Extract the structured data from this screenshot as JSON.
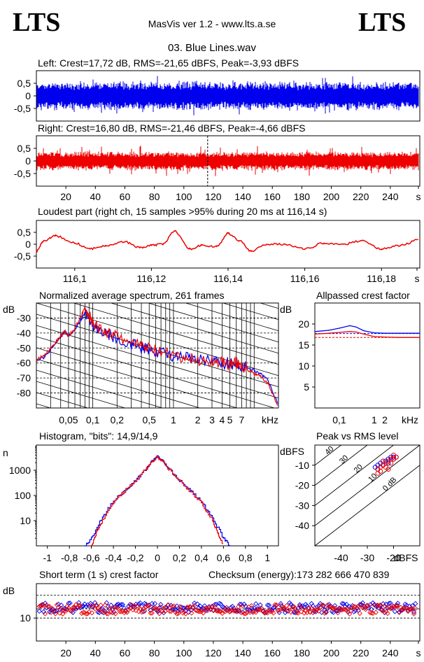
{
  "header": {
    "logo_left": "LTS",
    "logo_right": "LTS",
    "app_title": "MasVis ver 1.2 - www.lts.a.se",
    "file_title": "03. Blue Lines.wav"
  },
  "colors": {
    "blue": "#0000ee",
    "red": "#ee0000",
    "black": "#000000"
  },
  "chart_data": [
    {
      "id": "left",
      "type": "area",
      "title": "Left: Crest=17,72 dB, RMS=-21,65 dBFS, Peak=-3,93 dBFS",
      "y_ticks": [
        "0,5",
        "0",
        "-0,5"
      ],
      "ylim": [
        -1,
        1
      ],
      "color": "blue",
      "envelope_approx": 0.6
    },
    {
      "id": "right",
      "type": "area",
      "title": "Right: Crest=16,80 dB, RMS=-21,46 dBFS, Peak=-4,66 dBFS",
      "y_ticks": [
        "0,5",
        "0",
        "-0,5"
      ],
      "x_ticks": [
        "20",
        "40",
        "60",
        "80",
        "100",
        "120",
        "140",
        "160",
        "180",
        "200",
        "220",
        "240",
        "s"
      ],
      "xlim": [
        0,
        260
      ],
      "ylim": [
        -1,
        1
      ],
      "color": "red",
      "marker_x": 116.14,
      "envelope_approx": 0.4
    },
    {
      "id": "loudest",
      "type": "line",
      "title": "Loudest part (right ch, 15 samples >95% during 20 ms at 116,14 s)",
      "y_ticks": [
        "0,5",
        "0",
        "-0,5"
      ],
      "x_ticks": [
        "116,1",
        "116,12",
        "116,14",
        "116,16",
        "116,18",
        "s"
      ],
      "xlim": [
        116.09,
        116.19
      ],
      "ylim": [
        -1,
        1
      ],
      "color": "red",
      "x": [
        116.09,
        116.092,
        116.095,
        116.1,
        116.104,
        116.108,
        116.113,
        116.117,
        116.12,
        116.123,
        116.126,
        116.13,
        116.133,
        116.137,
        116.14,
        116.143,
        116.146,
        116.15,
        116.155,
        116.16,
        116.165,
        116.17,
        116.175,
        116.18,
        116.185,
        116.19
      ],
      "y": [
        -0.3,
        0.15,
        0.35,
        0.05,
        -0.2,
        -0.05,
        0.1,
        -0.15,
        -0.05,
        0.0,
        0.55,
        -0.2,
        -0.05,
        -0.1,
        0.45,
        0.15,
        -0.3,
        0.0,
        0.0,
        -0.2,
        0.05,
        0.0,
        0.15,
        -0.2,
        -0.05,
        0.2
      ]
    },
    {
      "id": "spectrum",
      "type": "line",
      "title": "Normalized average spectrum, 261 frames",
      "ylabel": "dB",
      "y_ticks": [
        "-30",
        "-40",
        "-50",
        "-60",
        "-70",
        "-80"
      ],
      "x_ticks": [
        "0,05",
        "0,1",
        "0,2",
        "0,5",
        "1",
        "2",
        "3",
        "4",
        "5",
        "7",
        "kHz"
      ],
      "x_log": true,
      "xlim": [
        0.02,
        20
      ],
      "ylim": [
        -90,
        -20
      ],
      "series": [
        {
          "color": "blue",
          "x": [
            0.02,
            0.025,
            0.03,
            0.035,
            0.04,
            0.045,
            0.05,
            0.06,
            0.07,
            0.08,
            0.09,
            0.1,
            0.12,
            0.15,
            0.2,
            0.3,
            0.4,
            0.5,
            0.7,
            1,
            1.5,
            2,
            3,
            4,
            5,
            6,
            7,
            8,
            10,
            12,
            15,
            20
          ],
          "y": [
            -59,
            -56,
            -51,
            -46,
            -42,
            -39,
            -42,
            -38,
            -32,
            -26,
            -30,
            -35,
            -38,
            -40,
            -44,
            -47,
            -50,
            -51,
            -53,
            -55,
            -57,
            -58,
            -59,
            -60,
            -60,
            -61,
            -62,
            -63,
            -65,
            -67,
            -72,
            -88
          ]
        },
        {
          "color": "red",
          "x": [
            0.02,
            0.025,
            0.03,
            0.035,
            0.04,
            0.045,
            0.05,
            0.06,
            0.07,
            0.08,
            0.09,
            0.1,
            0.12,
            0.15,
            0.2,
            0.3,
            0.4,
            0.5,
            0.7,
            1,
            1.5,
            2,
            3,
            4,
            5,
            6,
            7,
            8,
            10,
            12,
            15,
            20
          ],
          "y": [
            -58,
            -55,
            -50,
            -46,
            -42,
            -39,
            -42,
            -37,
            -30,
            -23,
            -28,
            -34,
            -37,
            -39,
            -43,
            -46,
            -49,
            -50,
            -53,
            -56,
            -57,
            -58,
            -59,
            -59,
            -61,
            -60,
            -61,
            -64,
            -67,
            -69,
            -74,
            -90
          ]
        }
      ]
    },
    {
      "id": "allpassed",
      "type": "line",
      "title": "Allpassed crest factor",
      "ylabel": "dB",
      "y_ticks": [
        "20",
        "15",
        "10",
        "5"
      ],
      "x_ticks": [
        "0,1",
        "1",
        "2",
        "kHz"
      ],
      "x_log": true,
      "xlim": [
        0.02,
        20
      ],
      "ylim": [
        0,
        25
      ],
      "series": [
        {
          "color": "blue",
          "x": [
            0.02,
            0.05,
            0.1,
            0.2,
            0.3,
            0.5,
            1,
            2,
            5,
            20
          ],
          "y": [
            18.2,
            18.5,
            19.0,
            19.6,
            19.3,
            18.4,
            17.9,
            17.8,
            17.8,
            17.8
          ]
        },
        {
          "color": "red",
          "x": [
            0.02,
            0.05,
            0.1,
            0.2,
            0.3,
            0.5,
            1,
            2,
            5,
            20
          ],
          "y": [
            17.6,
            17.8,
            18.0,
            18.2,
            18.1,
            17.6,
            17.0,
            16.9,
            16.8,
            16.8
          ]
        }
      ],
      "ref_y": [
        17.72,
        16.8
      ]
    },
    {
      "id": "histogram",
      "type": "line",
      "title": "Histogram, \"bits\": 14,9/14,9",
      "ylabel": "n",
      "y_ticks": [
        "1000",
        "100",
        "10"
      ],
      "x_ticks": [
        "-1",
        "-0,8",
        "-0,6",
        "-0,4",
        "-0,2",
        "0",
        "0,2",
        "0,4",
        "0,6",
        "0,8",
        "1"
      ],
      "y_log": true,
      "xlim": [
        -1.1,
        1.1
      ],
      "ylim": [
        1,
        10000
      ],
      "series": [
        {
          "color": "blue",
          "x": [
            -0.66,
            -0.6,
            -0.5,
            -0.4,
            -0.3,
            -0.2,
            -0.1,
            -0.05,
            0,
            0.05,
            0.1,
            0.2,
            0.3,
            0.4,
            0.5,
            0.6,
            0.66
          ],
          "y": [
            1,
            2,
            14,
            60,
            160,
            400,
            1200,
            2300,
            3400,
            2300,
            1200,
            400,
            150,
            55,
            12,
            2,
            1
          ]
        },
        {
          "color": "red",
          "x": [
            -0.6,
            -0.55,
            -0.5,
            -0.4,
            -0.3,
            -0.2,
            -0.1,
            -0.05,
            0,
            0.05,
            0.1,
            0.2,
            0.3,
            0.4,
            0.5,
            0.55,
            0.6
          ],
          "y": [
            1,
            4,
            10,
            55,
            150,
            380,
            1150,
            2200,
            3300,
            2200,
            1150,
            380,
            140,
            50,
            10,
            3,
            1
          ]
        }
      ]
    },
    {
      "id": "peak-rms",
      "type": "scatter",
      "title": "Peak vs RMS level",
      "ylabel": "dBFS",
      "xlabel": "dBFS",
      "y_ticks": [
        "-10",
        "-20",
        "-30",
        "-40"
      ],
      "x_ticks": [
        "-40",
        "-30",
        "-20"
      ],
      "diag_labels": [
        "40",
        "30",
        "20",
        "10",
        "0 dB"
      ],
      "xlim": [
        -50,
        -10
      ],
      "ylim": [
        -50,
        0
      ],
      "series": [
        {
          "color": "blue",
          "x": [
            -26,
            -25,
            -24,
            -23,
            -22,
            -21,
            -20,
            -19,
            -24,
            -22,
            -20,
            -27,
            -26
          ],
          "y": [
            -10,
            -9,
            -8,
            -8,
            -7,
            -6,
            -6,
            -6,
            -10,
            -9,
            -7,
            -11,
            -12
          ]
        },
        {
          "color": "red",
          "x": [
            -26,
            -25,
            -24,
            -23,
            -22,
            -21,
            -20,
            -19,
            -25,
            -23,
            -21,
            -22,
            -24,
            -20,
            -26
          ],
          "y": [
            -12,
            -11,
            -10,
            -9,
            -8,
            -7,
            -7,
            -6,
            -13,
            -11,
            -9,
            -12,
            -8,
            -5,
            -14
          ]
        }
      ]
    },
    {
      "id": "short-term-crest",
      "type": "scatter",
      "title": "Short term (1 s) crest factor",
      "extra_label": "Checksum (energy):",
      "extra_value": "173 282 666 470 839",
      "ylabel": "dB",
      "y_ticks": [
        "10"
      ],
      "x_ticks": [
        "20",
        "40",
        "60",
        "80",
        "100",
        "120",
        "140",
        "160",
        "180",
        "200",
        "220",
        "240",
        "s"
      ],
      "xlim": [
        0,
        260
      ],
      "ylim": [
        0,
        25
      ],
      "ref_lines": [
        10,
        14,
        20
      ],
      "series": [
        {
          "color": "blue",
          "mean": 14.5,
          "spread": 2.2,
          "count": 258
        },
        {
          "color": "red",
          "mean": 13.8,
          "spread": 2.0,
          "count": 258
        }
      ]
    }
  ]
}
